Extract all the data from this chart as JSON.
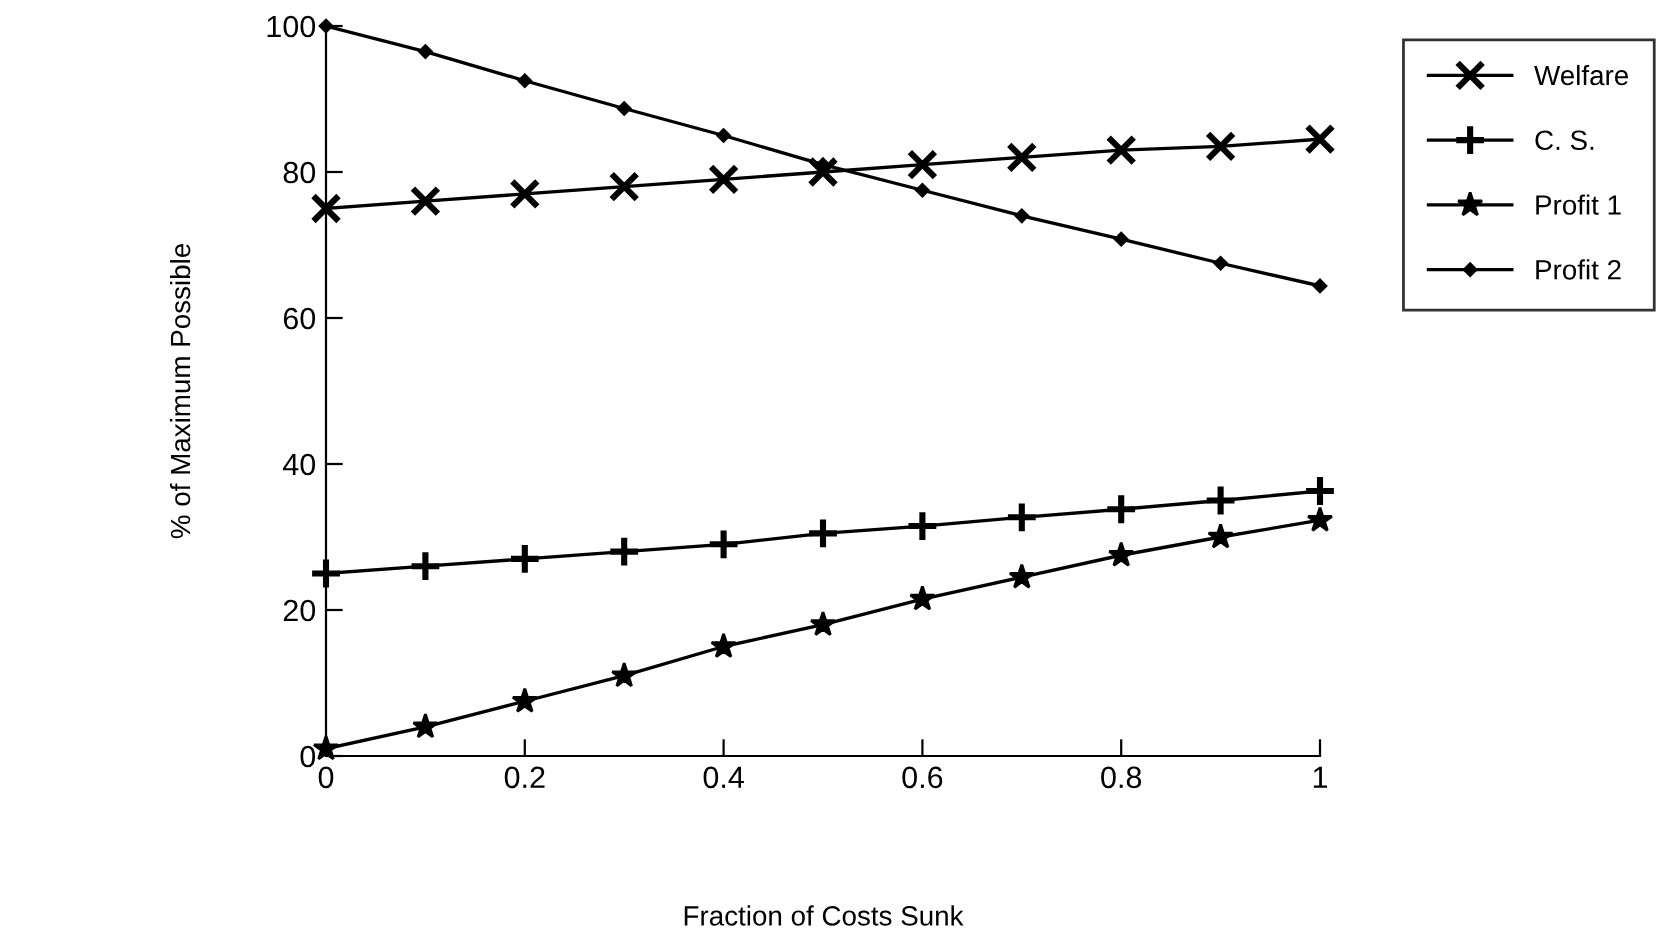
{
  "chart_data": {
    "type": "line",
    "xlabel": "Fraction of Costs Sunk",
    "ylabel": "% of Maximum Possible",
    "x": [
      0,
      0.1,
      0.2,
      0.3,
      0.4,
      0.5,
      0.6,
      0.7,
      0.8,
      0.9,
      1
    ],
    "series": [
      {
        "name": "Welfare",
        "color": "#000000",
        "marker": "cross",
        "values": [
          75,
          76,
          77,
          78,
          79,
          80,
          81,
          82,
          83,
          83.5,
          84.5
        ]
      },
      {
        "name": "C. S.",
        "color": "#000000",
        "marker": "plus",
        "values": [
          25,
          26,
          27,
          28,
          29,
          30.5,
          31.5,
          32.7,
          33.8,
          35,
          36.3
        ]
      },
      {
        "name": "Profit 1",
        "color": "#000000",
        "marker": "star",
        "values": [
          1,
          4,
          7.5,
          11,
          15,
          18,
          21.5,
          24.5,
          27.5,
          30,
          32.3
        ]
      },
      {
        "name": "Profit 2",
        "color": "#000000",
        "marker": "diamond",
        "values": [
          100,
          96.5,
          92.5,
          88.7,
          85,
          81,
          77.5,
          74,
          70.8,
          67.5,
          64.4
        ]
      }
    ],
    "xlim": [
      0,
      1
    ],
    "xticks": [
      0,
      0.2,
      0.4,
      0.6,
      0.8,
      1
    ],
    "ylim": [
      0,
      100
    ],
    "yticks": [
      0,
      20,
      40,
      60,
      80,
      100
    ],
    "grid": false,
    "legend": "top right",
    "line_style": "solid"
  }
}
